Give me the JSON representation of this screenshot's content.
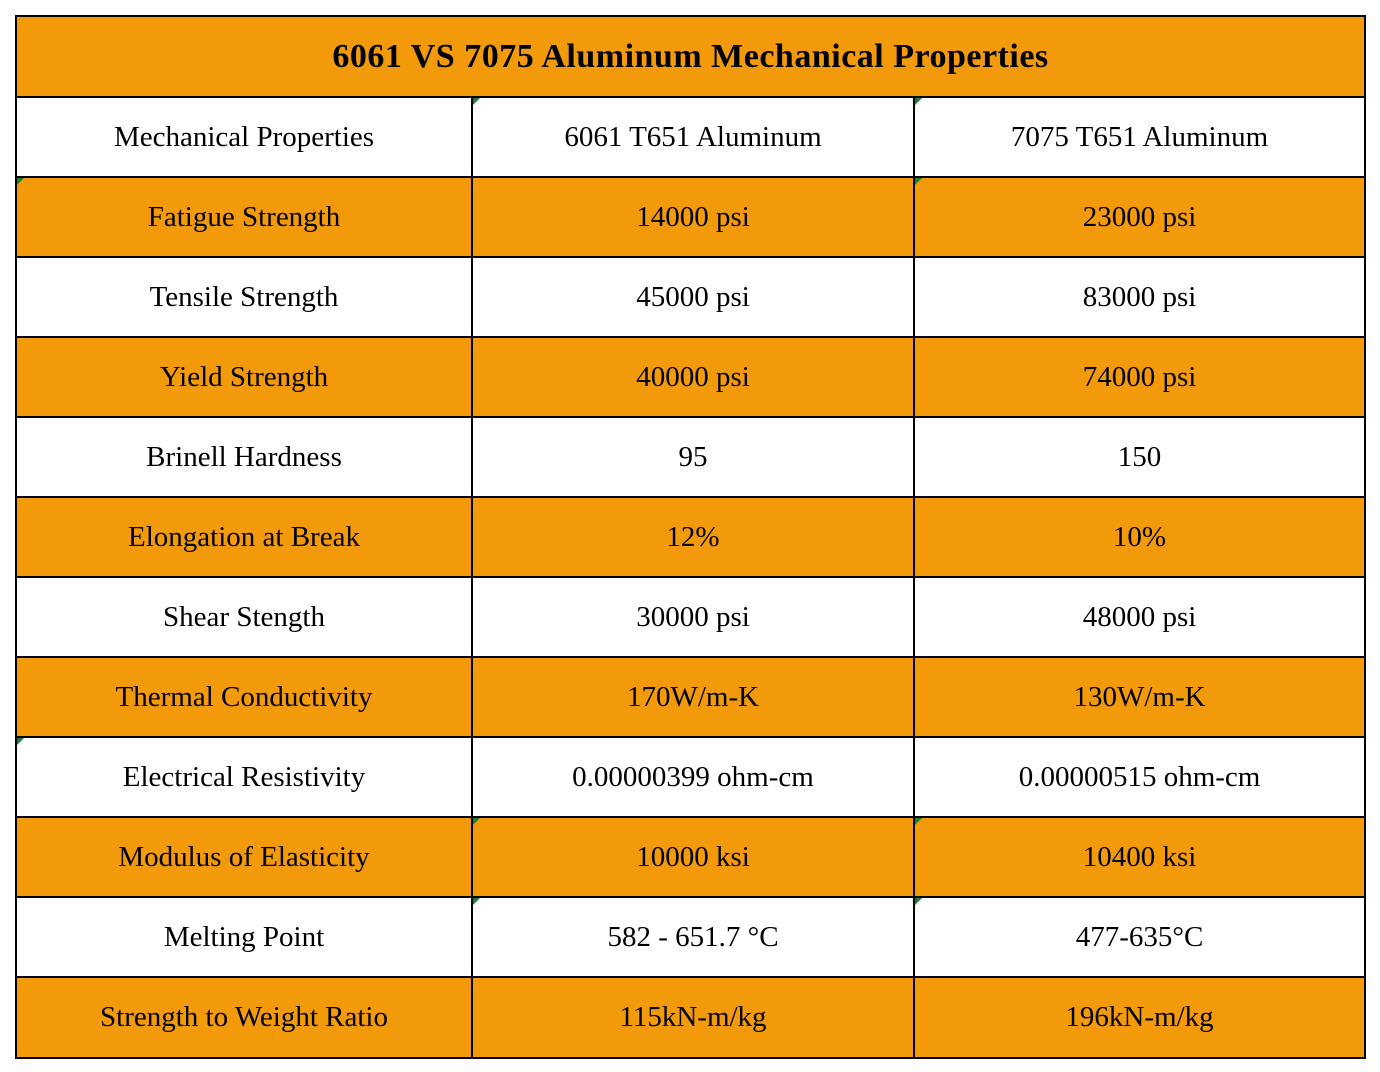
{
  "title": "6061 VS 7075 Aluminum Mechanical Properties",
  "colors": {
    "orange": "#f29a0a",
    "white": "#ffffff",
    "border": "#000000",
    "cell_marker": "#1e7d32"
  },
  "header": [
    "Mechanical Properties",
    "6061 T651 Aluminum",
    "7075  T651 Aluminum"
  ],
  "rows": [
    [
      "Fatigue Strength",
      "14000 psi",
      "23000 psi"
    ],
    [
      "Tensile Strength",
      "45000 psi",
      "83000 psi"
    ],
    [
      "Yield Strength",
      "40000 psi",
      "74000 psi"
    ],
    [
      "Brinell Hardness",
      "95",
      "150"
    ],
    [
      "Elongation at Break",
      "12%",
      "10%"
    ],
    [
      "Shear Stength",
      "30000 psi",
      "48000 psi"
    ],
    [
      "Thermal Conductivity",
      "170W/m-K",
      "130W/m-K"
    ],
    [
      "Electrical Resistivity",
      "0.00000399 ohm-cm",
      "0.00000515 ohm-cm"
    ],
    [
      "Modulus of  Elasticity",
      "10000 ksi",
      "10400 ksi"
    ],
    [
      "Melting Point",
      "582 - 651.7 °C",
      "477-635°C"
    ],
    [
      "Strength to Weight Ratio",
      "115kN-m/kg",
      "196kN-m/kg"
    ]
  ]
}
